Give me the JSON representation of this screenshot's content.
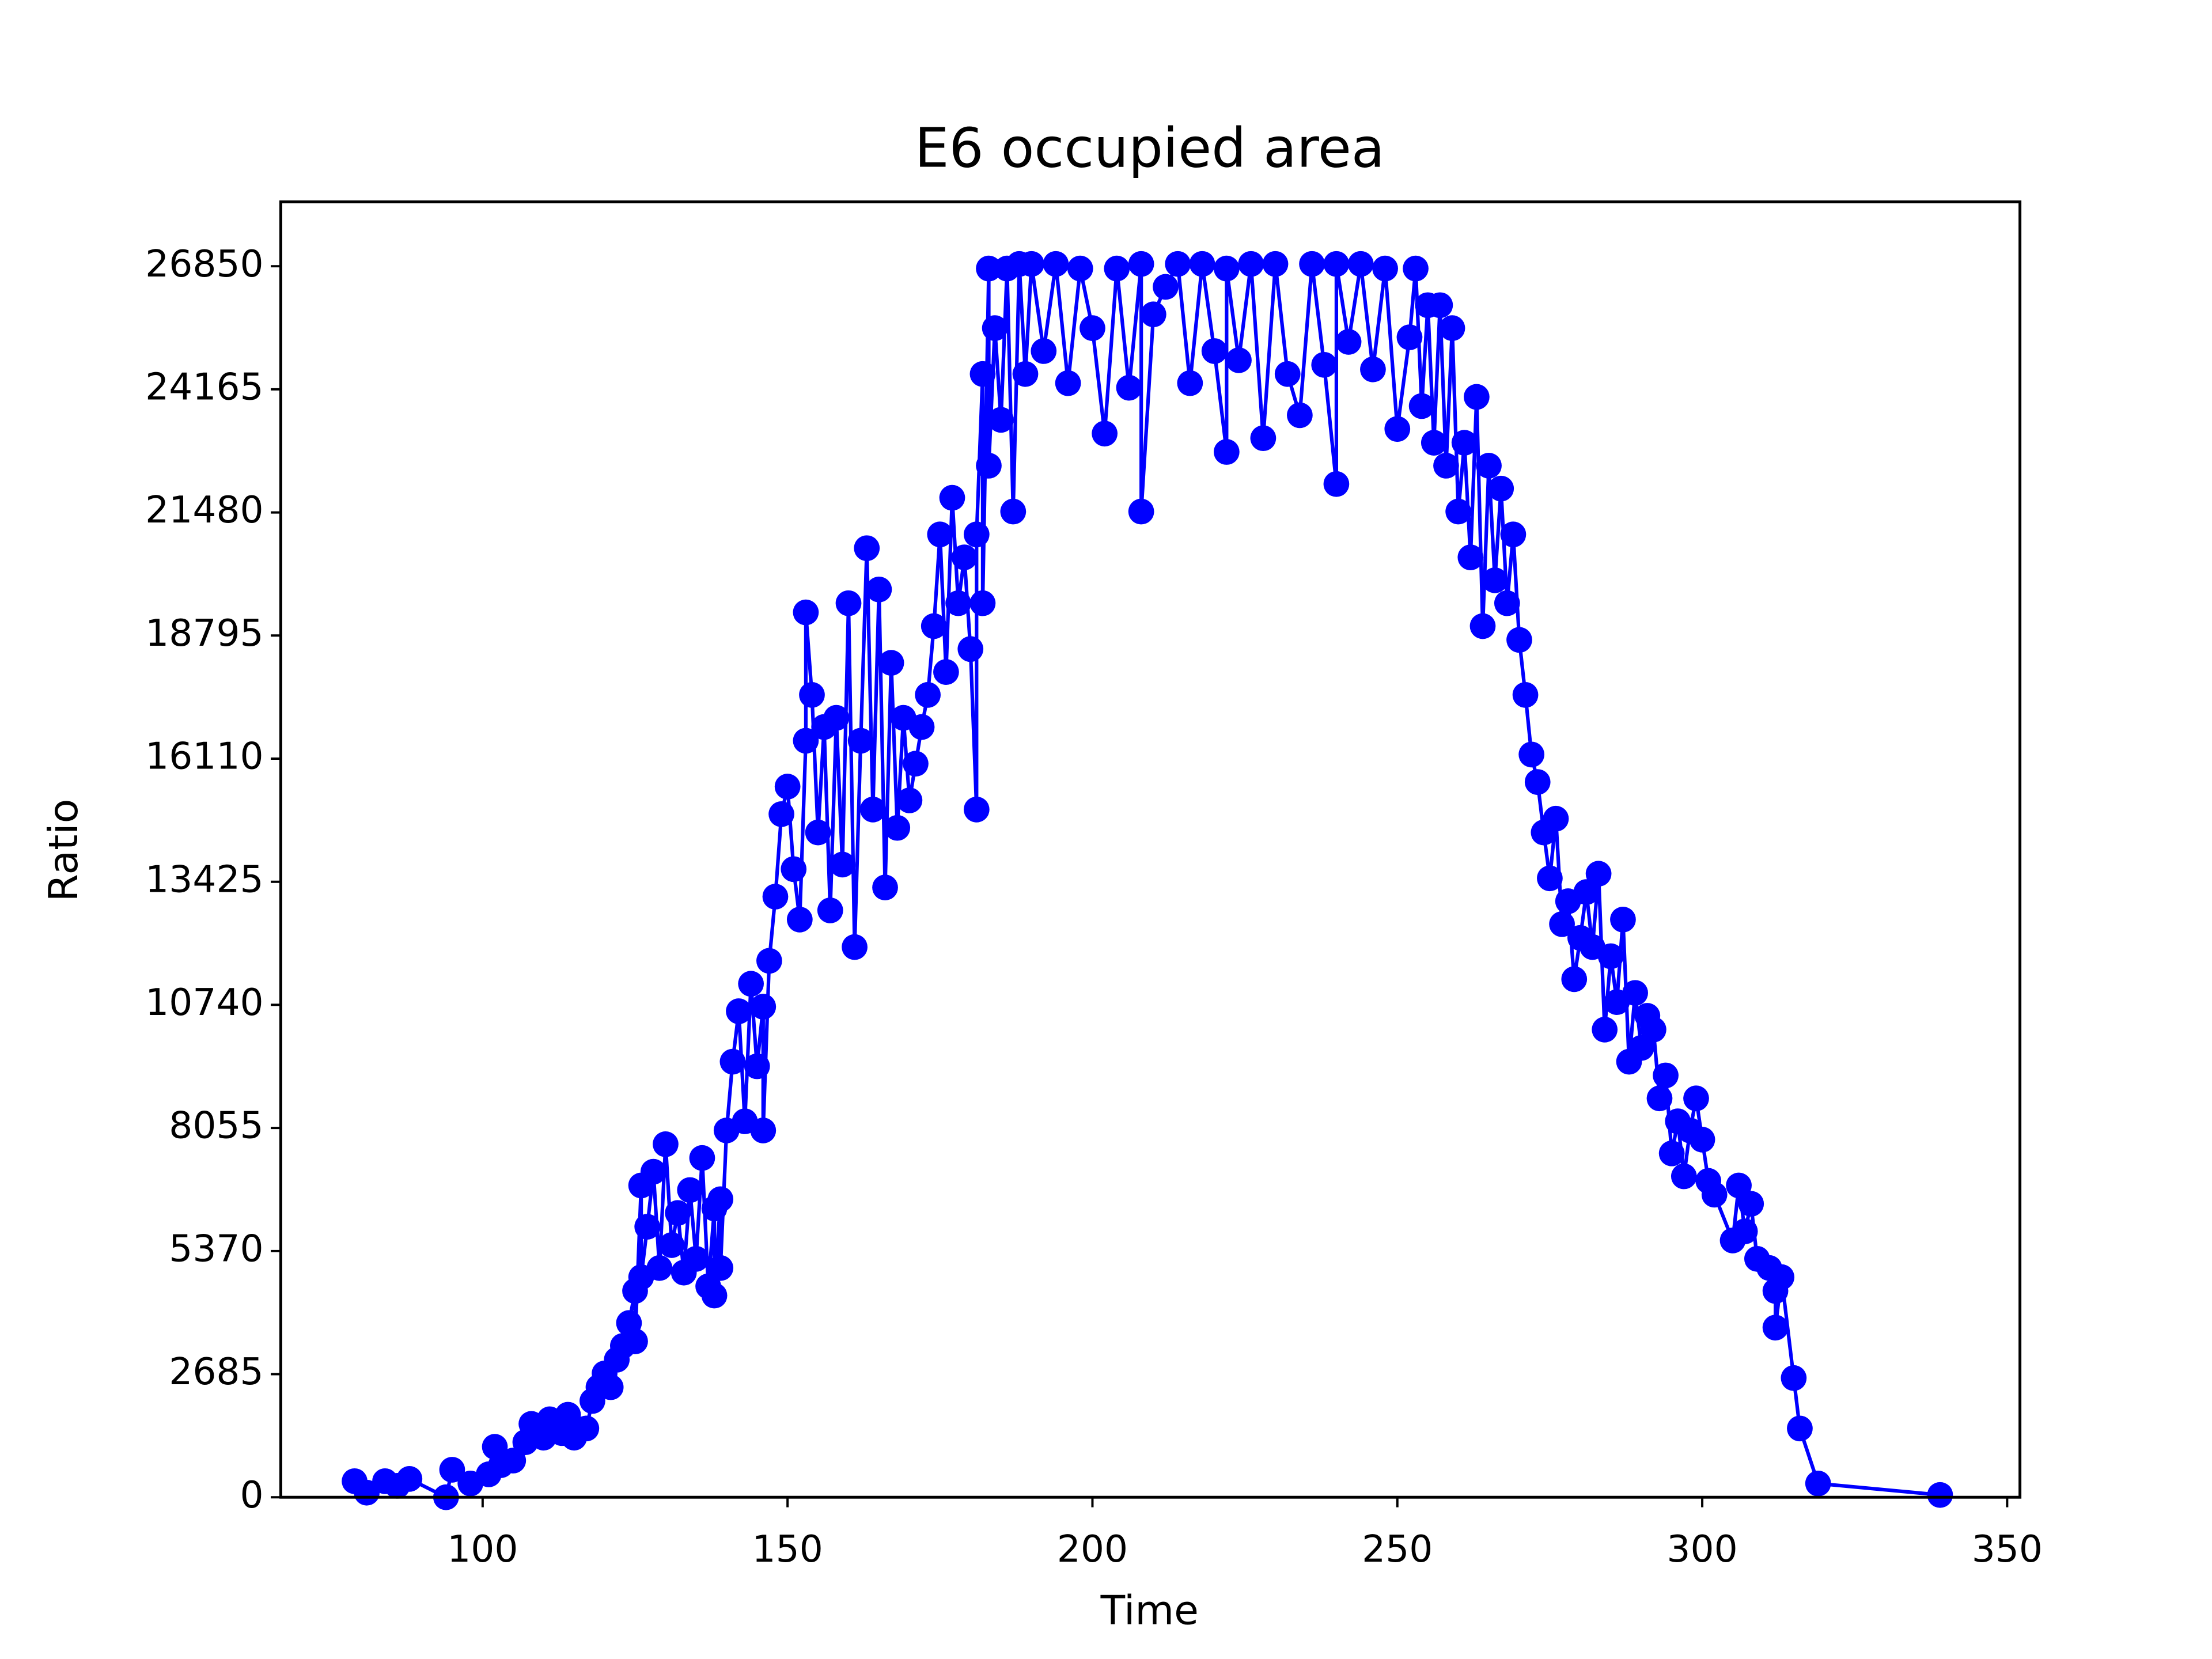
{
  "chart_data": {
    "type": "line",
    "title": "E6 occupied area",
    "x_label": "Time",
    "y_label": "Ratio",
    "x": [
      79,
      81,
      84,
      86,
      88,
      94,
      95,
      98,
      101,
      102,
      103,
      105,
      107,
      108,
      110,
      111,
      113,
      114,
      115,
      117,
      118,
      119,
      120,
      121,
      122,
      123,
      124,
      125,
      125,
      126,
      126,
      127,
      128,
      129,
      130,
      131,
      132,
      133,
      134,
      135,
      136,
      137,
      138,
      138,
      139,
      139,
      140,
      141,
      142,
      143,
      144,
      145,
      146,
      146,
      147,
      148,
      149,
      150,
      151,
      152,
      153,
      153,
      154,
      155,
      156,
      157,
      158,
      159,
      160,
      161,
      162,
      163,
      164,
      165,
      166,
      167,
      168,
      169,
      170,
      171,
      172,
      173,
      174,
      175,
      176,
      177,
      178,
      179,
      180,
      181,
      181,
      182,
      182,
      183,
      183,
      184,
      185,
      186,
      187,
      188,
      189,
      190,
      192,
      194,
      196,
      198,
      200,
      202,
      204,
      206,
      208,
      208,
      210,
      212,
      214,
      216,
      218,
      220,
      222,
      222,
      224,
      226,
      228,
      230,
      232,
      234,
      236,
      238,
      240,
      240,
      242,
      244,
      246,
      248,
      250,
      252,
      253,
      254,
      255,
      256,
      257,
      258,
      259,
      260,
      261,
      262,
      263,
      264,
      265,
      266,
      267,
      268,
      269,
      270,
      271,
      272,
      273,
      274,
      275,
      276,
      277,
      278,
      279,
      280,
      281,
      282,
      283,
      284,
      285,
      286,
      287,
      288,
      289,
      290,
      291,
      292,
      293,
      294,
      295,
      296,
      297,
      298,
      299,
      300,
      301,
      302,
      305,
      306,
      307,
      308,
      309,
      311,
      312,
      312,
      313,
      315,
      316,
      319,
      339
    ],
    "series": [
      {
        "name": "E6",
        "color": "#0000ff",
        "values": [
          350,
          100,
          350,
          250,
          400,
          0,
          600,
          300,
          500,
          1100,
          700,
          800,
          1200,
          1600,
          1300,
          1700,
          1400,
          1800,
          1300,
          1500,
          2100,
          2400,
          2700,
          2400,
          3000,
          3300,
          3800,
          4500,
          3400,
          6800,
          4800,
          5900,
          7100,
          5000,
          7700,
          5500,
          6200,
          4900,
          6700,
          5200,
          7400,
          4600,
          6300,
          4400,
          6500,
          5000,
          8000,
          9500,
          10600,
          8200,
          11200,
          9400,
          10700,
          8000,
          11700,
          13100,
          14900,
          15500,
          13700,
          12600,
          16500,
          19300,
          17500,
          14500,
          16800,
          12800,
          17000,
          13800,
          19500,
          12000,
          16500,
          20700,
          15000,
          19800,
          13300,
          18200,
          14600,
          17000,
          15200,
          16000,
          16800,
          17500,
          19000,
          21000,
          18000,
          21800,
          19500,
          20500,
          18500,
          15000,
          21000,
          24500,
          19500,
          26800,
          22500,
          25500,
          23500,
          26800,
          21500,
          26900,
          24500,
          26900,
          25000,
          26900,
          24300,
          26800,
          25500,
          23200,
          26800,
          24200,
          26900,
          21500,
          25800,
          26400,
          26900,
          24300,
          26900,
          25000,
          22800,
          26800,
          24800,
          26900,
          23100,
          26900,
          24500,
          23600,
          26900,
          24700,
          22100,
          26900,
          25200,
          26900,
          24600,
          26800,
          23300,
          25300,
          26800,
          23800,
          26000,
          23000,
          26000,
          22500,
          25500,
          21500,
          23000,
          20500,
          24000,
          19000,
          22500,
          20000,
          22000,
          19500,
          21000,
          18700,
          17500,
          16200,
          15600,
          14500,
          13500,
          14800,
          12500,
          13000,
          11300,
          12200,
          13200,
          12000,
          13600,
          10200,
          11800,
          10800,
          12600,
          9500,
          11000,
          9800,
          10500,
          10200,
          8700,
          9200,
          7500,
          8200,
          7000,
          8000,
          8700,
          7800,
          6900,
          6600,
          5600,
          6800,
          5800,
          6400,
          5200,
          5000,
          4500,
          3700,
          4800,
          2600,
          1500,
          300,
          50
        ]
      }
    ],
    "xlim": [
      66.9,
      352.1
    ],
    "ylim": [
      0,
      28255
    ],
    "xticks": [
      100,
      150,
      200,
      250,
      300,
      350
    ],
    "yticks": [
      0,
      2685,
      5370,
      8055,
      10740,
      13425,
      16110,
      18795,
      21480,
      24165,
      26850
    ],
    "marker": true
  }
}
